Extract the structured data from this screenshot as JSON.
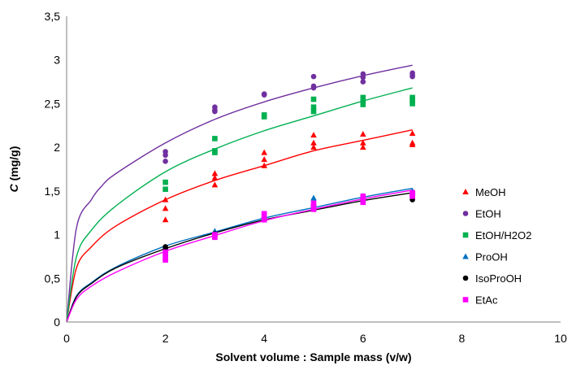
{
  "chart_data": {
    "type": "scatter",
    "xlabel": "Solvent volume : Sample mass (v/w)",
    "ylabel_bold": "C",
    "ylabel_rest": " (mg/g)",
    "xlim": [
      0,
      10
    ],
    "ylim": [
      0,
      3.5
    ],
    "x_ticks": [
      "0",
      "2",
      "4",
      "6",
      "8",
      "10"
    ],
    "y_ticks": [
      "0",
      "0,5",
      "1",
      "1,5",
      "2",
      "2,5",
      "3",
      "3,5"
    ],
    "grid": false,
    "legend_position": "right",
    "series": [
      {
        "name": "MeOH",
        "color": "#ff0000",
        "marker": "triangle",
        "points": [
          [
            2,
            1.4
          ],
          [
            2,
            1.3
          ],
          [
            2,
            1.17
          ],
          [
            3,
            1.7
          ],
          [
            3,
            1.65
          ],
          [
            3,
            1.57
          ],
          [
            4,
            1.94
          ],
          [
            4,
            1.86
          ],
          [
            4,
            1.79
          ],
          [
            5,
            2.14
          ],
          [
            5,
            2.05
          ],
          [
            5,
            2.0
          ],
          [
            6,
            2.15
          ],
          [
            6,
            2.05
          ],
          [
            6,
            2.0
          ],
          [
            7,
            2.16
          ],
          [
            7,
            2.05
          ],
          [
            7,
            2.03
          ]
        ],
        "fit": [
          [
            0,
            0
          ],
          [
            0.2,
            0.62
          ],
          [
            0.5,
            0.86
          ],
          [
            1,
            1.1
          ],
          [
            2,
            1.4
          ],
          [
            3,
            1.62
          ],
          [
            4,
            1.79
          ],
          [
            5,
            1.96
          ],
          [
            6,
            2.08
          ],
          [
            7,
            2.2
          ]
        ]
      },
      {
        "name": "EtOH",
        "color": "#7030a0",
        "marker": "circle",
        "points": [
          [
            2,
            1.95
          ],
          [
            2,
            1.91
          ],
          [
            2,
            1.84
          ],
          [
            3,
            2.46
          ],
          [
            3,
            2.43
          ],
          [
            3,
            2.41
          ],
          [
            4,
            2.61
          ],
          [
            4,
            2.6
          ],
          [
            5,
            2.81
          ],
          [
            5,
            2.7
          ],
          [
            5,
            2.68
          ],
          [
            6,
            2.84
          ],
          [
            6,
            2.8
          ],
          [
            6,
            2.75
          ],
          [
            7,
            2.85
          ],
          [
            7,
            2.83
          ],
          [
            7,
            2.81
          ]
        ],
        "fit": [
          [
            0,
            0
          ],
          [
            0.2,
            1.08
          ],
          [
            0.5,
            1.4
          ],
          [
            0.7,
            1.55
          ],
          [
            1,
            1.7
          ],
          [
            2,
            2.05
          ],
          [
            3,
            2.32
          ],
          [
            4,
            2.52
          ],
          [
            5,
            2.68
          ],
          [
            6,
            2.82
          ],
          [
            7,
            2.94
          ]
        ]
      },
      {
        "name": "EtOH/H2O2",
        "color": "#00b050",
        "marker": "square",
        "points": [
          [
            2,
            1.6
          ],
          [
            2,
            1.52
          ],
          [
            3,
            2.1
          ],
          [
            3,
            1.96
          ],
          [
            3,
            1.94
          ],
          [
            4,
            2.37
          ],
          [
            4,
            2.35
          ],
          [
            5,
            2.55
          ],
          [
            5,
            2.46
          ],
          [
            5,
            2.41
          ],
          [
            6,
            2.57
          ],
          [
            6,
            2.53
          ],
          [
            6,
            2.49
          ],
          [
            7,
            2.57
          ],
          [
            7,
            2.54
          ],
          [
            7,
            2.5
          ]
        ],
        "fit": [
          [
            0,
            0
          ],
          [
            0.2,
            0.75
          ],
          [
            0.5,
            1.05
          ],
          [
            1,
            1.33
          ],
          [
            2,
            1.72
          ],
          [
            3,
            1.98
          ],
          [
            4,
            2.19
          ],
          [
            5,
            2.36
          ],
          [
            6,
            2.53
          ],
          [
            7,
            2.68
          ]
        ]
      },
      {
        "name": "ProOH",
        "color": "#0070c0",
        "marker": "triangle",
        "points": [
          [
            2,
            0.86
          ],
          [
            2,
            0.82
          ],
          [
            3,
            1.04
          ],
          [
            3,
            1.01
          ],
          [
            4,
            1.22
          ],
          [
            4,
            1.19
          ],
          [
            5,
            1.42
          ],
          [
            5,
            1.36
          ],
          [
            5,
            1.31
          ],
          [
            6,
            1.44
          ],
          [
            6,
            1.4
          ],
          [
            7,
            1.5
          ],
          [
            7,
            1.47
          ]
        ],
        "fit": [
          [
            0,
            0
          ],
          [
            0.2,
            0.3
          ],
          [
            0.5,
            0.45
          ],
          [
            1,
            0.63
          ],
          [
            2,
            0.87
          ],
          [
            3,
            1.03
          ],
          [
            4,
            1.19
          ],
          [
            5,
            1.31
          ],
          [
            6,
            1.43
          ],
          [
            7,
            1.53
          ]
        ]
      },
      {
        "name": "IsoProOH",
        "color": "#000000",
        "marker": "circle",
        "points": [
          [
            2,
            0.86
          ],
          [
            2,
            0.83
          ],
          [
            2,
            0.76
          ],
          [
            3,
            1.01
          ],
          [
            3,
            0.98
          ],
          [
            4,
            1.2
          ],
          [
            4,
            1.18
          ],
          [
            5,
            1.33
          ],
          [
            5,
            1.3
          ],
          [
            6,
            1.41
          ],
          [
            6,
            1.38
          ],
          [
            7,
            1.44
          ],
          [
            7,
            1.42
          ],
          [
            7,
            1.4
          ]
        ],
        "fit": [
          [
            0,
            0
          ],
          [
            0.2,
            0.29
          ],
          [
            0.5,
            0.44
          ],
          [
            1,
            0.62
          ],
          [
            2,
            0.84
          ],
          [
            3,
            1.02
          ],
          [
            4,
            1.17
          ],
          [
            5,
            1.28
          ],
          [
            6,
            1.39
          ],
          [
            7,
            1.48
          ]
        ]
      },
      {
        "name": "EtAc",
        "color": "#ff00ff",
        "marker": "square",
        "points": [
          [
            2,
            0.8
          ],
          [
            2,
            0.74
          ],
          [
            2,
            0.71
          ],
          [
            3,
            1.0
          ],
          [
            3,
            0.97
          ],
          [
            4,
            1.24
          ],
          [
            4,
            1.21
          ],
          [
            4,
            1.17
          ],
          [
            5,
            1.36
          ],
          [
            5,
            1.32
          ],
          [
            5,
            1.29
          ],
          [
            6,
            1.44
          ],
          [
            6,
            1.41
          ],
          [
            6,
            1.37
          ],
          [
            7,
            1.48
          ],
          [
            7,
            1.46
          ],
          [
            7,
            1.44
          ]
        ],
        "fit": [
          [
            0,
            0
          ],
          [
            0.2,
            0.26
          ],
          [
            0.5,
            0.41
          ],
          [
            1,
            0.57
          ],
          [
            2,
            0.81
          ],
          [
            3,
            0.99
          ],
          [
            4,
            1.16
          ],
          [
            5,
            1.29
          ],
          [
            6,
            1.41
          ],
          [
            7,
            1.51
          ]
        ]
      }
    ]
  }
}
